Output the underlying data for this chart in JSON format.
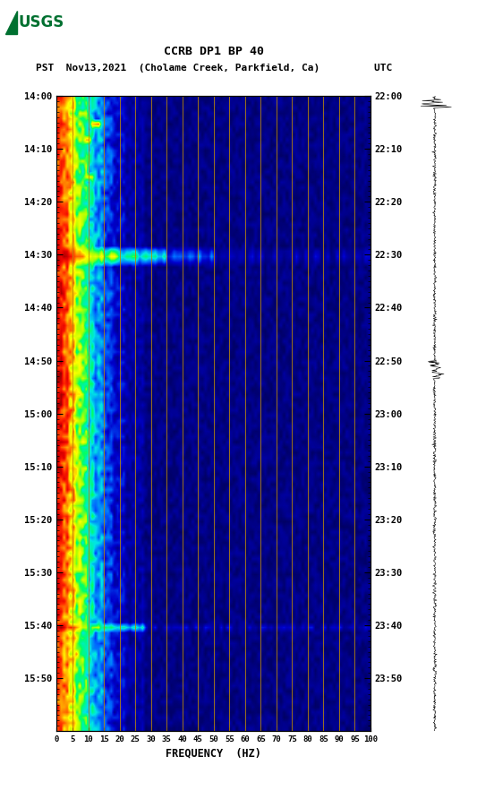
{
  "title_line1": "CCRB DP1 BP 40",
  "title_line2": "PST  Nov13,2021  (Cholame Creek, Parkfield, Ca)         UTC",
  "xlabel": "FREQUENCY  (HZ)",
  "freq_ticks": [
    0,
    5,
    10,
    15,
    20,
    25,
    30,
    35,
    40,
    45,
    50,
    55,
    60,
    65,
    70,
    75,
    80,
    85,
    90,
    95,
    100
  ],
  "left_time_labels": [
    "14:00",
    "14:10",
    "14:20",
    "14:30",
    "14:40",
    "14:50",
    "15:00",
    "15:10",
    "15:20",
    "15:30",
    "15:40",
    "15:50"
  ],
  "right_time_labels": [
    "22:00",
    "22:10",
    "22:20",
    "22:30",
    "22:40",
    "22:50",
    "23:00",
    "23:10",
    "23:20",
    "23:30",
    "23:40",
    "23:50"
  ],
  "fig_width": 5.52,
  "fig_height": 8.92,
  "dpi": 100,
  "bg_color": "white",
  "usgs_green": "#007030"
}
